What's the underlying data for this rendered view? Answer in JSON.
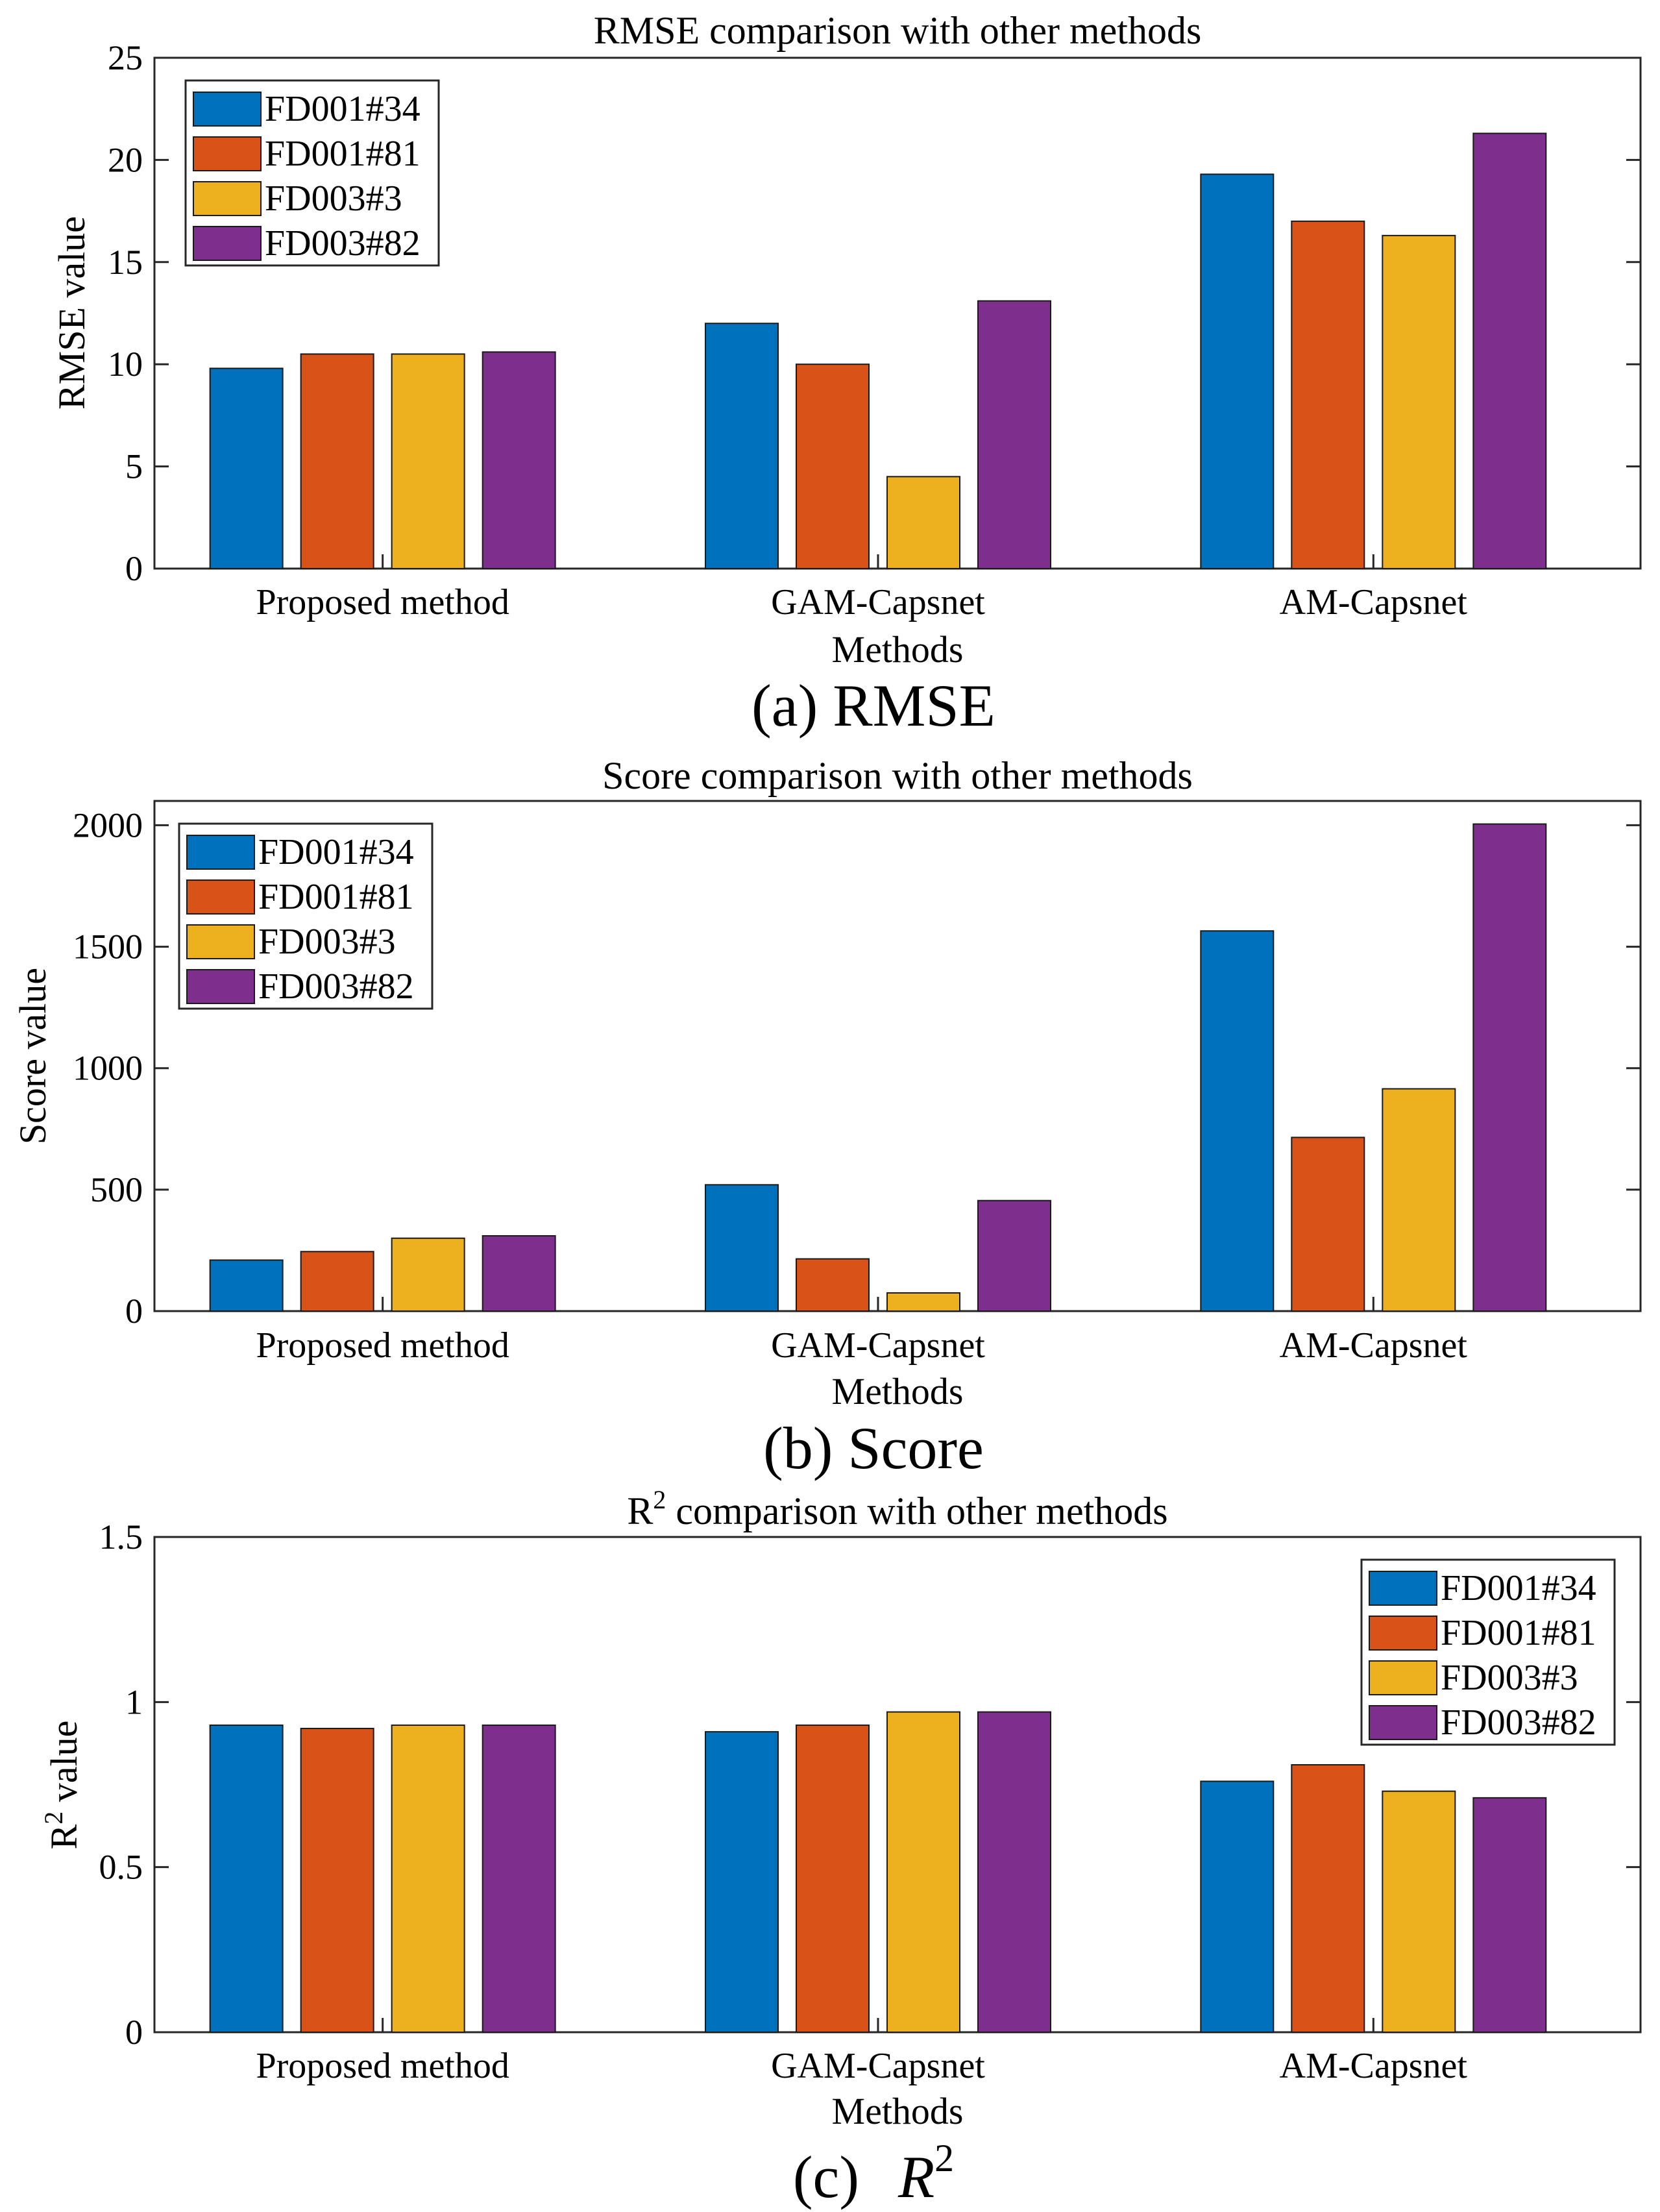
{
  "chart_data": [
    {
      "type": "bar",
      "title": "RMSE comparison with other methods",
      "xlabel": "Methods",
      "ylabel": "RMSE value",
      "caption": "(a) RMSE",
      "categories": [
        "Proposed method",
        "GAM-Capsnet",
        "AM-Capsnet"
      ],
      "series": [
        {
          "name": "FD001#34",
          "values": [
            9.8,
            12.0,
            19.3
          ]
        },
        {
          "name": "FD001#81",
          "values": [
            10.5,
            10.0,
            17.0
          ]
        },
        {
          "name": "FD003#3",
          "values": [
            10.5,
            4.5,
            16.3
          ]
        },
        {
          "name": "FD003#82",
          "values": [
            10.6,
            13.1,
            21.3
          ]
        }
      ],
      "ylim": [
        0,
        25
      ],
      "yticks": [
        "0",
        "5",
        "10",
        "15",
        "20",
        "25"
      ],
      "legend_position": "top-left"
    },
    {
      "type": "bar",
      "title": "Score comparison with other methods",
      "xlabel": "Methods",
      "ylabel": "Score value",
      "caption": "(b) Score",
      "categories": [
        "Proposed method",
        "GAM-Capsnet",
        "AM-Capsnet"
      ],
      "series": [
        {
          "name": "FD001#34",
          "values": [
            210,
            520,
            1565
          ]
        },
        {
          "name": "FD001#81",
          "values": [
            245,
            215,
            715
          ]
        },
        {
          "name": "FD003#3",
          "values": [
            300,
            75,
            915
          ]
        },
        {
          "name": "FD003#82",
          "values": [
            310,
            455,
            2005
          ]
        }
      ],
      "ylim": [
        0,
        2100
      ],
      "yticks": [
        "0",
        "500",
        "1000",
        "1500",
        "2000"
      ],
      "legend_position": "top-left"
    },
    {
      "type": "bar",
      "title_main": "R",
      "title_sup": "2",
      "title_rest": " comparison with other methods",
      "xlabel": "Methods",
      "ylabel_main": "R",
      "ylabel_sup": "2",
      "ylabel_rest": " value",
      "caption_prefix": "(c)",
      "caption_symbol": "R",
      "caption_sup": "2",
      "categories": [
        "Proposed method",
        "GAM-Capsnet",
        "AM-Capsnet"
      ],
      "series": [
        {
          "name": "FD001#34",
          "values": [
            0.93,
            0.91,
            0.76
          ]
        },
        {
          "name": "FD001#81",
          "values": [
            0.92,
            0.93,
            0.81
          ]
        },
        {
          "name": "FD003#3",
          "values": [
            0.93,
            0.97,
            0.73
          ]
        },
        {
          "name": "FD003#82",
          "values": [
            0.93,
            0.97,
            0.71
          ]
        }
      ],
      "ylim": [
        0,
        1.5
      ],
      "yticks": [
        "0",
        "0.5",
        "1",
        "1.5"
      ],
      "legend_position": "top-right"
    }
  ],
  "colors": {
    "series": [
      "#0072BD",
      "#D95319",
      "#EDB120",
      "#7E2F8E"
    ],
    "axis": "#262626",
    "background": "#FFFFFF"
  }
}
